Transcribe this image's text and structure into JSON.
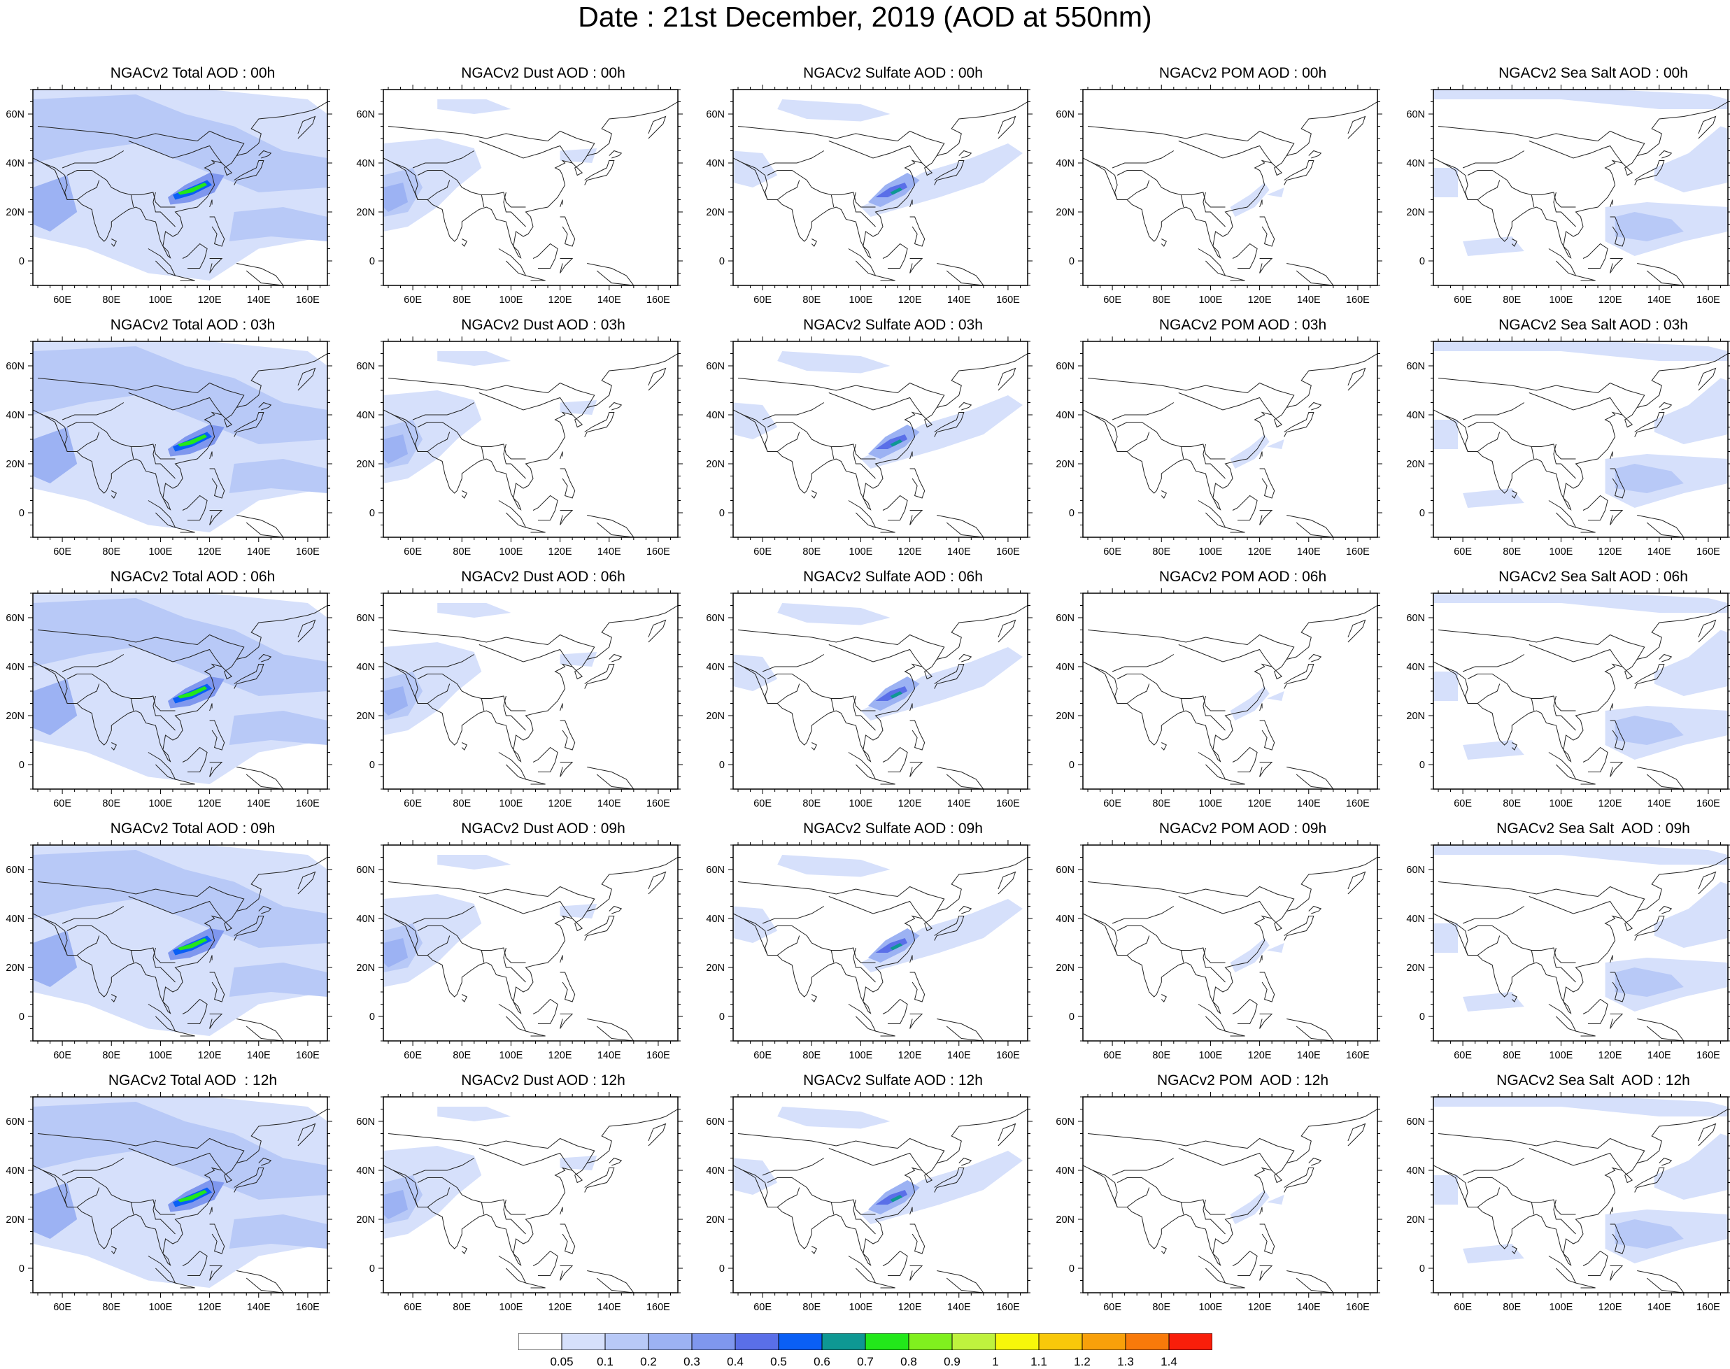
{
  "title": "Date : 21st December, 2019 (AOD at 550nm)",
  "axes": {
    "lon_ticks": [
      "60E",
      "80E",
      "100E",
      "120E",
      "140E",
      "160E"
    ],
    "lat_ticks": [
      "60N",
      "40N",
      "20N",
      "0"
    ],
    "lon_range": [
      48,
      168
    ],
    "lat_range": [
      -10,
      70
    ]
  },
  "panels": [
    {
      "title": "NGACv2 Total AOD : 00h",
      "species": "total"
    },
    {
      "title": "NGACv2 Dust AOD : 00h",
      "species": "dust"
    },
    {
      "title": "NGACv2 Sulfate AOD : 00h",
      "species": "sulfate"
    },
    {
      "title": "NGACv2 POM AOD : 00h",
      "species": "pom"
    },
    {
      "title": "NGACv2 Sea Salt AOD : 00h",
      "species": "seasalt"
    },
    {
      "title": "NGACv2 Total AOD : 03h",
      "species": "total"
    },
    {
      "title": "NGACv2 Dust AOD : 03h",
      "species": "dust"
    },
    {
      "title": "NGACv2 Sulfate AOD : 03h",
      "species": "sulfate"
    },
    {
      "title": "NGACv2 POM AOD : 03h",
      "species": "pom"
    },
    {
      "title": "NGACv2 Sea Salt AOD : 03h",
      "species": "seasalt"
    },
    {
      "title": "NGACv2 Total AOD : 06h",
      "species": "total"
    },
    {
      "title": "NGACv2 Dust AOD : 06h",
      "species": "dust"
    },
    {
      "title": "NGACv2 Sulfate AOD : 06h",
      "species": "sulfate"
    },
    {
      "title": "NGACv2 POM AOD : 06h",
      "species": "pom"
    },
    {
      "title": "NGACv2 Sea Salt AOD : 06h",
      "species": "seasalt"
    },
    {
      "title": "NGACv2 Total AOD : 09h",
      "species": "total"
    },
    {
      "title": "NGACv2 Dust AOD : 09h",
      "species": "dust"
    },
    {
      "title": "NGACv2 Sulfate AOD : 09h",
      "species": "sulfate"
    },
    {
      "title": "NGACv2 POM AOD : 09h",
      "species": "pom"
    },
    {
      "title": "NGACv2 Sea Salt  AOD : 09h",
      "species": "seasalt"
    },
    {
      "title": "NGACv2 Total AOD  : 12h",
      "species": "total"
    },
    {
      "title": "NGACv2 Dust AOD : 12h",
      "species": "dust"
    },
    {
      "title": "NGACv2 Sulfate AOD : 12h",
      "species": "sulfate"
    },
    {
      "title": "NGACv2 POM  AOD : 12h",
      "species": "pom"
    },
    {
      "title": "NGACv2 Sea Salt  AOD : 12h",
      "species": "seasalt"
    }
  ],
  "colorbar": {
    "labels": [
      "0.05",
      "0.1",
      "0.2",
      "0.3",
      "0.4",
      "0.5",
      "0.6",
      "0.7",
      "0.8",
      "0.9",
      "1",
      "1.1",
      "1.2",
      "1.3",
      "1.4"
    ],
    "colors": [
      "#ffffff",
      "#d6e0fb",
      "#b8c9f7",
      "#9cb2f3",
      "#7f97ee",
      "#5a6fe8",
      "#0a5ff5",
      "#0e9893",
      "#22e81a",
      "#80f01e",
      "#bff23e",
      "#f7f70a",
      "#f8c80a",
      "#f8a00a",
      "#f87a0a",
      "#f81e0a"
    ]
  }
}
